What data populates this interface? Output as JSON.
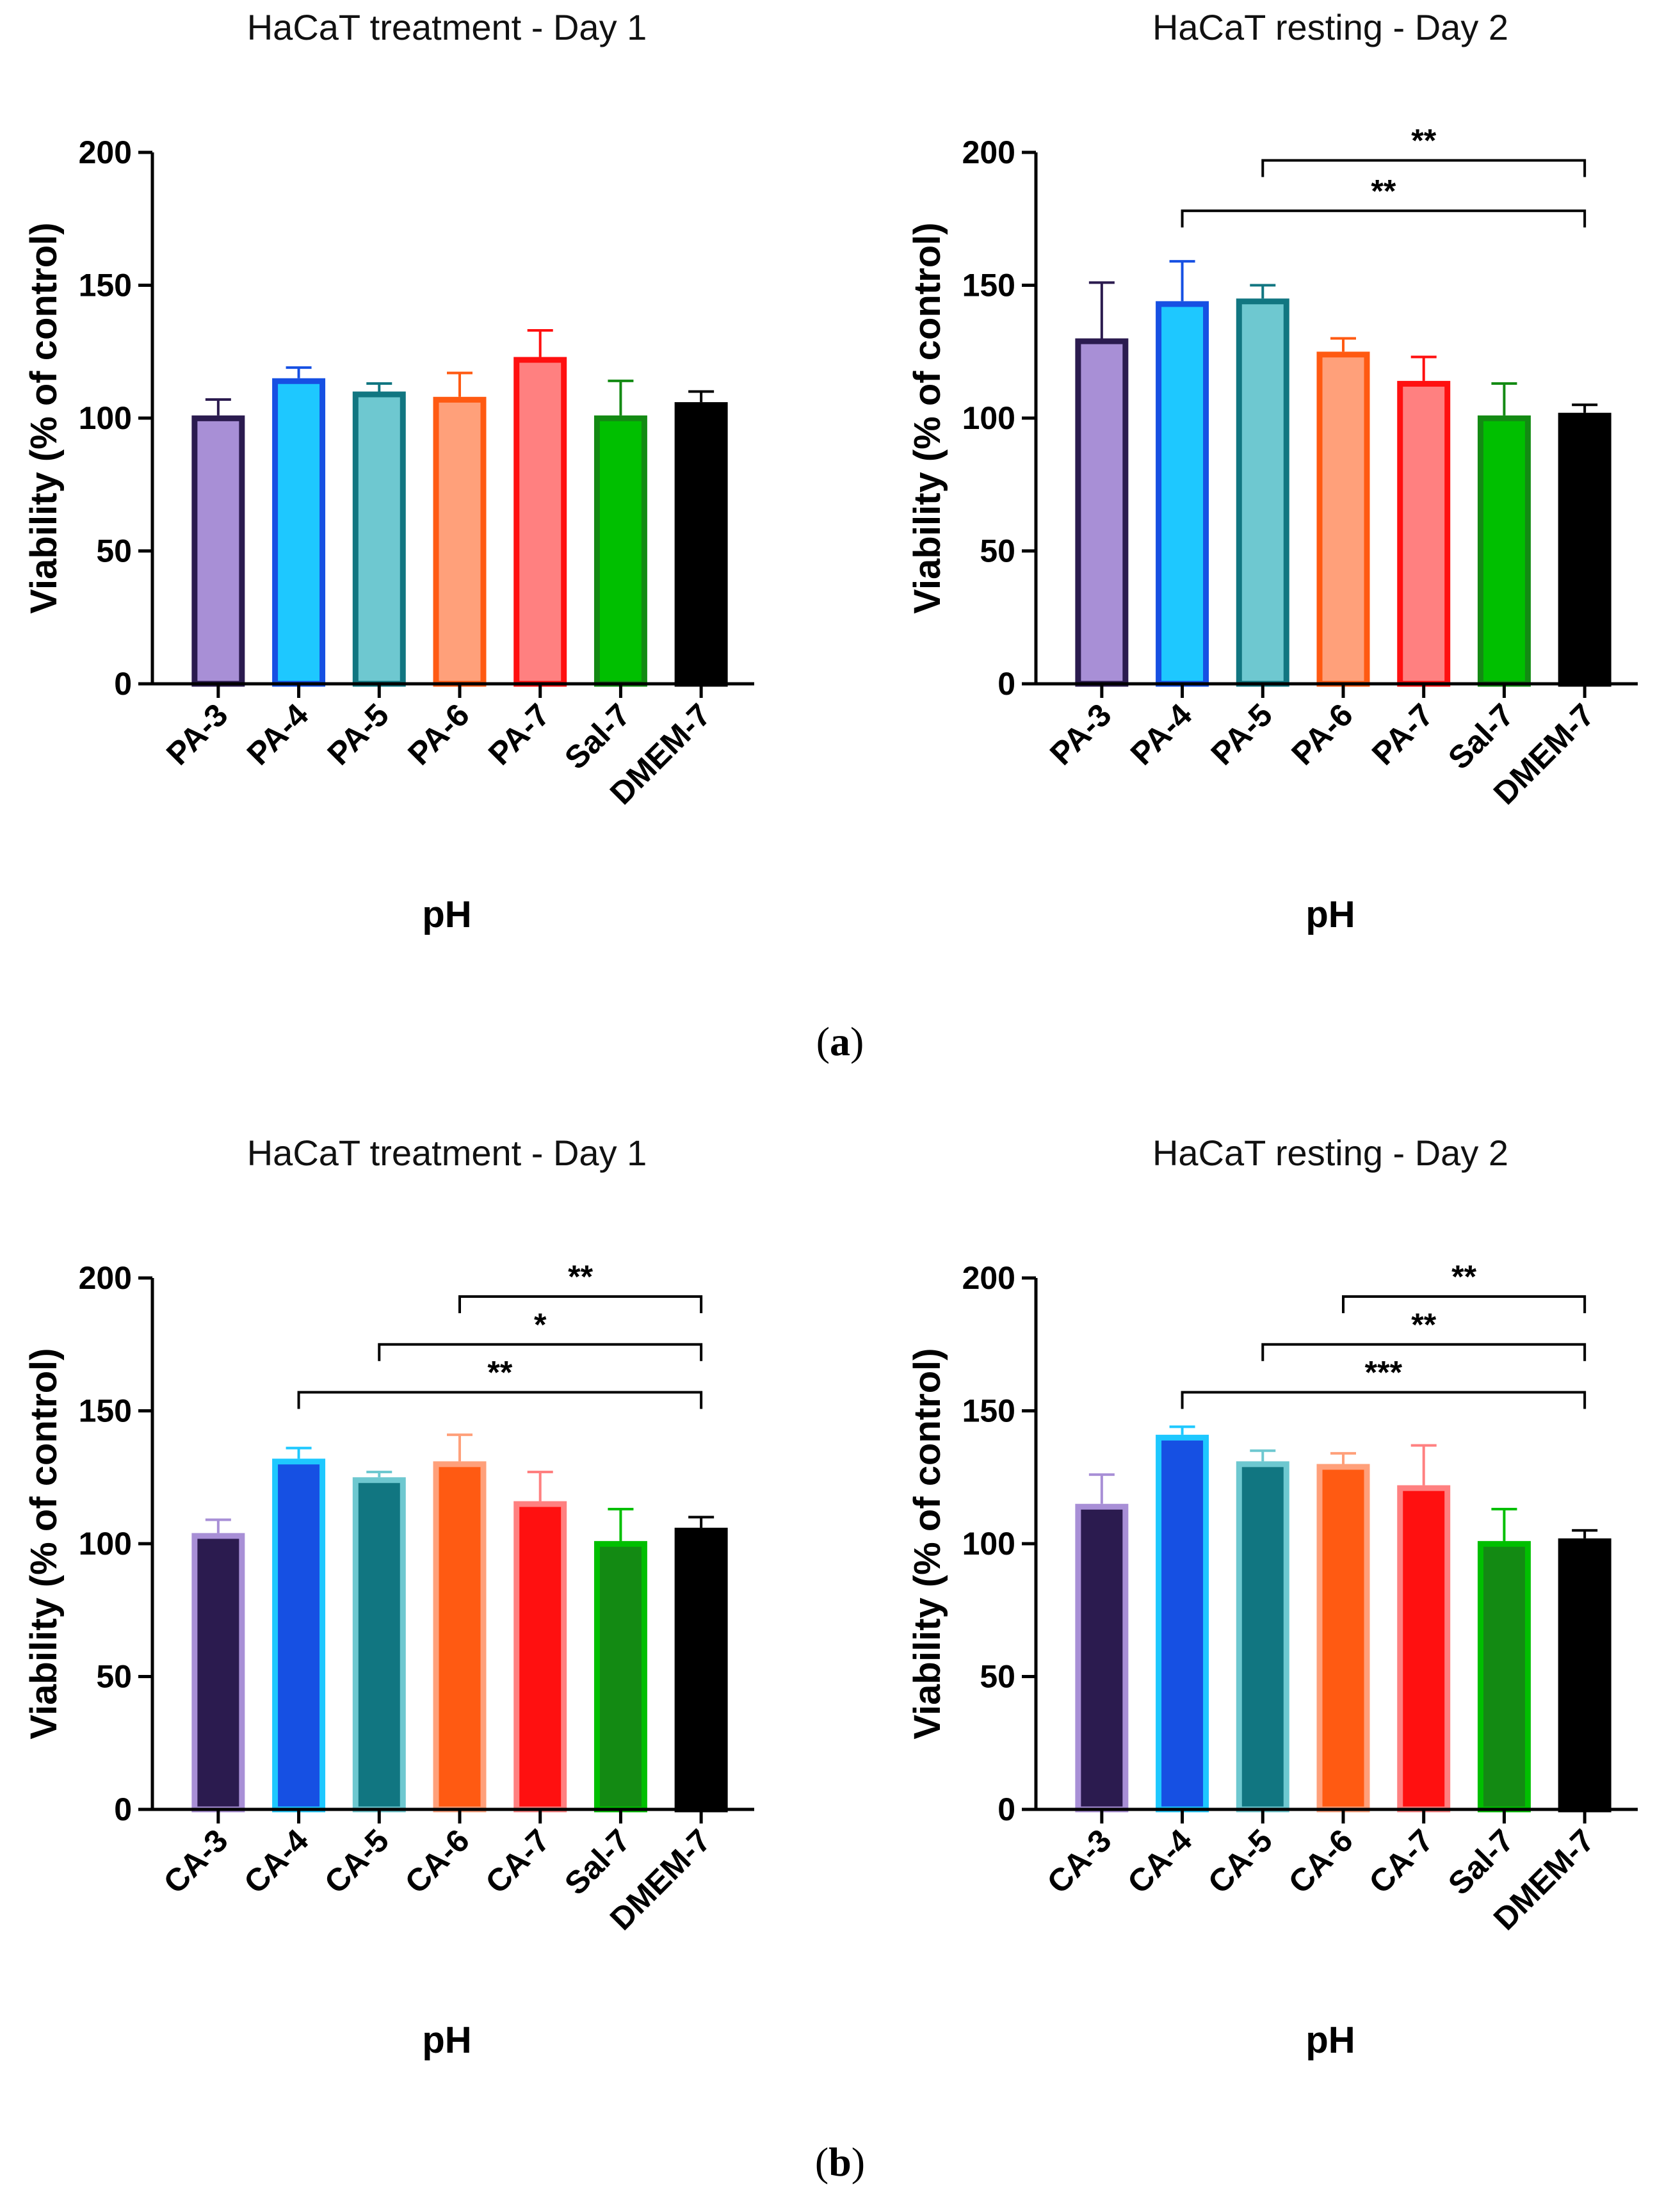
{
  "panels": [
    {
      "id": "a",
      "label_open": "(",
      "label_letter": "a",
      "label_close": ")"
    },
    {
      "id": "b",
      "label_open": "(",
      "label_letter": "b",
      "label_close": ")"
    }
  ],
  "chart_data": [
    {
      "type": "bar",
      "panel": "a",
      "title": "HaCaT treatment - Day 1",
      "xlabel": "pH",
      "ylabel": "Viability (% of control)",
      "ylim": [
        0,
        200
      ],
      "yticks": [
        "0",
        "50",
        "100",
        "150",
        "200"
      ],
      "categories": [
        "PA-3",
        "PA-4",
        "PA-5",
        "PA-6",
        "PA-7",
        "Sal-7",
        "DMEM-7"
      ],
      "values": [
        101,
        115,
        110,
        108,
        123,
        101,
        106
      ],
      "errors": [
        6,
        4,
        3,
        9,
        10,
        13,
        4
      ],
      "fills": [
        "#a88fd6",
        "#1ec8ff",
        "#6ec8d0",
        "#ffa07a",
        "#ff8080",
        "#00bf00",
        "#000000"
      ],
      "borders": [
        "#2b1b4f",
        "#1650e3",
        "#117681",
        "#ff5a12",
        "#ff1010",
        "#138a13",
        "#000000"
      ],
      "significance": []
    },
    {
      "type": "bar",
      "panel": "a",
      "title": "HaCaT resting - Day 2",
      "xlabel": "pH",
      "ylabel": "Viability (% of control)",
      "ylim": [
        0,
        200
      ],
      "yticks": [
        "0",
        "50",
        "100",
        "150",
        "200"
      ],
      "categories": [
        "PA-3",
        "PA-4",
        "PA-5",
        "PA-6",
        "PA-7",
        "Sal-7",
        "DMEM-7"
      ],
      "values": [
        130,
        144,
        145,
        125,
        114,
        101,
        102
      ],
      "errors": [
        21,
        15,
        5,
        5,
        9,
        12,
        3
      ],
      "fills": [
        "#a88fd6",
        "#1ec8ff",
        "#6ec8d0",
        "#ffa07a",
        "#ff8080",
        "#00bf00",
        "#000000"
      ],
      "borders": [
        "#2b1b4f",
        "#1650e3",
        "#117681",
        "#ff5a12",
        "#ff1010",
        "#138a13",
        "#000000"
      ],
      "significance": [
        {
          "from": 2,
          "to": 6,
          "label": "**",
          "y": 197
        },
        {
          "from": 1,
          "to": 6,
          "label": "**",
          "y": 178
        }
      ]
    },
    {
      "type": "bar",
      "panel": "b",
      "title": "HaCaT treatment - Day 1",
      "xlabel": "pH",
      "ylabel": "Viability (% of control)",
      "ylim": [
        0,
        200
      ],
      "yticks": [
        "0",
        "50",
        "100",
        "150",
        "200"
      ],
      "categories": [
        "CA-3",
        "CA-4",
        "CA-5",
        "CA-6",
        "CA-7",
        "Sal-7",
        "DMEM-7"
      ],
      "values": [
        104,
        132,
        125,
        131,
        116,
        101,
        106
      ],
      "errors": [
        5,
        4,
        2,
        10,
        11,
        12,
        4
      ],
      "fills": [
        "#2b1b4f",
        "#1650e3",
        "#117681",
        "#ff5a12",
        "#ff1010",
        "#138a13",
        "#000000"
      ],
      "borders": [
        "#a88fd6",
        "#1ec8ff",
        "#6ec8d0",
        "#ffa07a",
        "#ff8080",
        "#00bf00",
        "#000000"
      ],
      "significance": [
        {
          "from": 3,
          "to": 6,
          "label": "**",
          "y": 193
        },
        {
          "from": 2,
          "to": 6,
          "label": "*",
          "y": 175
        },
        {
          "from": 1,
          "to": 6,
          "label": "**",
          "y": 157
        }
      ]
    },
    {
      "type": "bar",
      "panel": "b",
      "title": "HaCaT resting - Day 2",
      "xlabel": "pH",
      "ylabel": "Viability (% of control)",
      "ylim": [
        0,
        200
      ],
      "yticks": [
        "0",
        "50",
        "100",
        "150",
        "200"
      ],
      "categories": [
        "CA-3",
        "CA-4",
        "CA-5",
        "CA-6",
        "CA-7",
        "Sal-7",
        "DMEM-7"
      ],
      "values": [
        115,
        141,
        131,
        130,
        122,
        101,
        102
      ],
      "errors": [
        11,
        3,
        4,
        4,
        15,
        12,
        3
      ],
      "fills": [
        "#2b1b4f",
        "#1650e3",
        "#117681",
        "#ff5a12",
        "#ff1010",
        "#138a13",
        "#000000"
      ],
      "borders": [
        "#a88fd6",
        "#1ec8ff",
        "#6ec8d0",
        "#ffa07a",
        "#ff8080",
        "#00bf00",
        "#000000"
      ],
      "significance": [
        {
          "from": 3,
          "to": 6,
          "label": "**",
          "y": 193
        },
        {
          "from": 2,
          "to": 6,
          "label": "**",
          "y": 175
        },
        {
          "from": 1,
          "to": 6,
          "label": "***",
          "y": 157
        }
      ]
    }
  ]
}
